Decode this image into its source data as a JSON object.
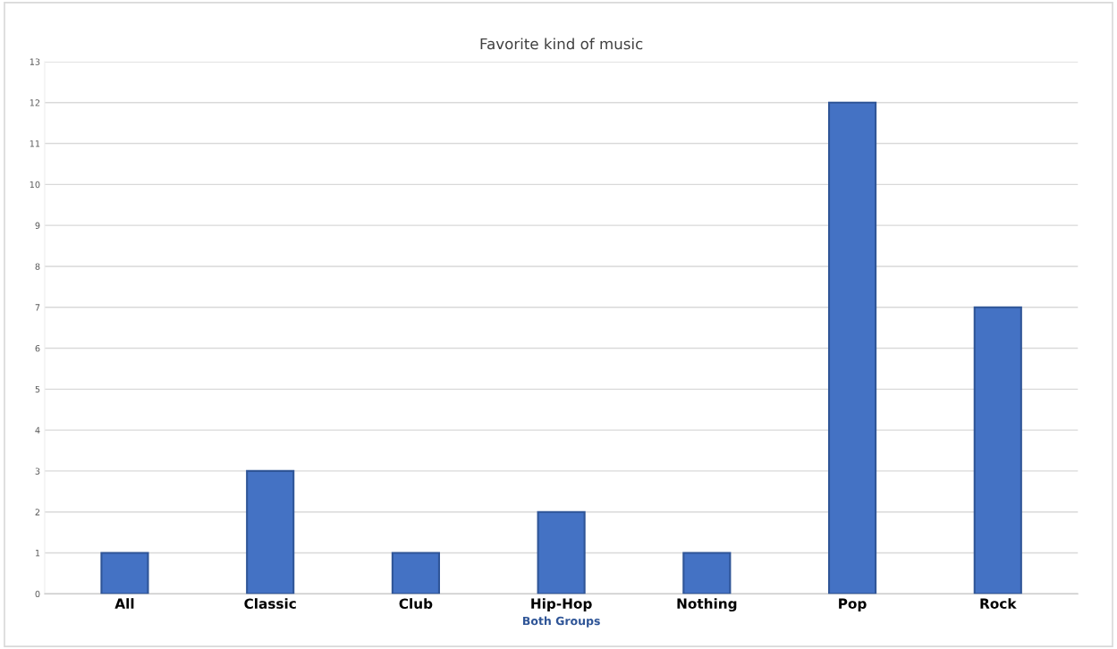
{
  "chart_data": {
    "type": "bar",
    "title": "Favorite kind of music",
    "xlabel": "Both Groups",
    "categories": [
      "All",
      "Classic",
      "Club",
      "Hip-Hop",
      "Nothing",
      "Pop",
      "Rock"
    ],
    "values": [
      1,
      3,
      1,
      2,
      1,
      12,
      7
    ],
    "color": "#4472c4",
    "ylim": [
      0,
      13
    ],
    "yticks": [
      0,
      1,
      2,
      3,
      4,
      5,
      6,
      7,
      8,
      9,
      10,
      11,
      12,
      13
    ],
    "grid": "y",
    "legend": false
  }
}
